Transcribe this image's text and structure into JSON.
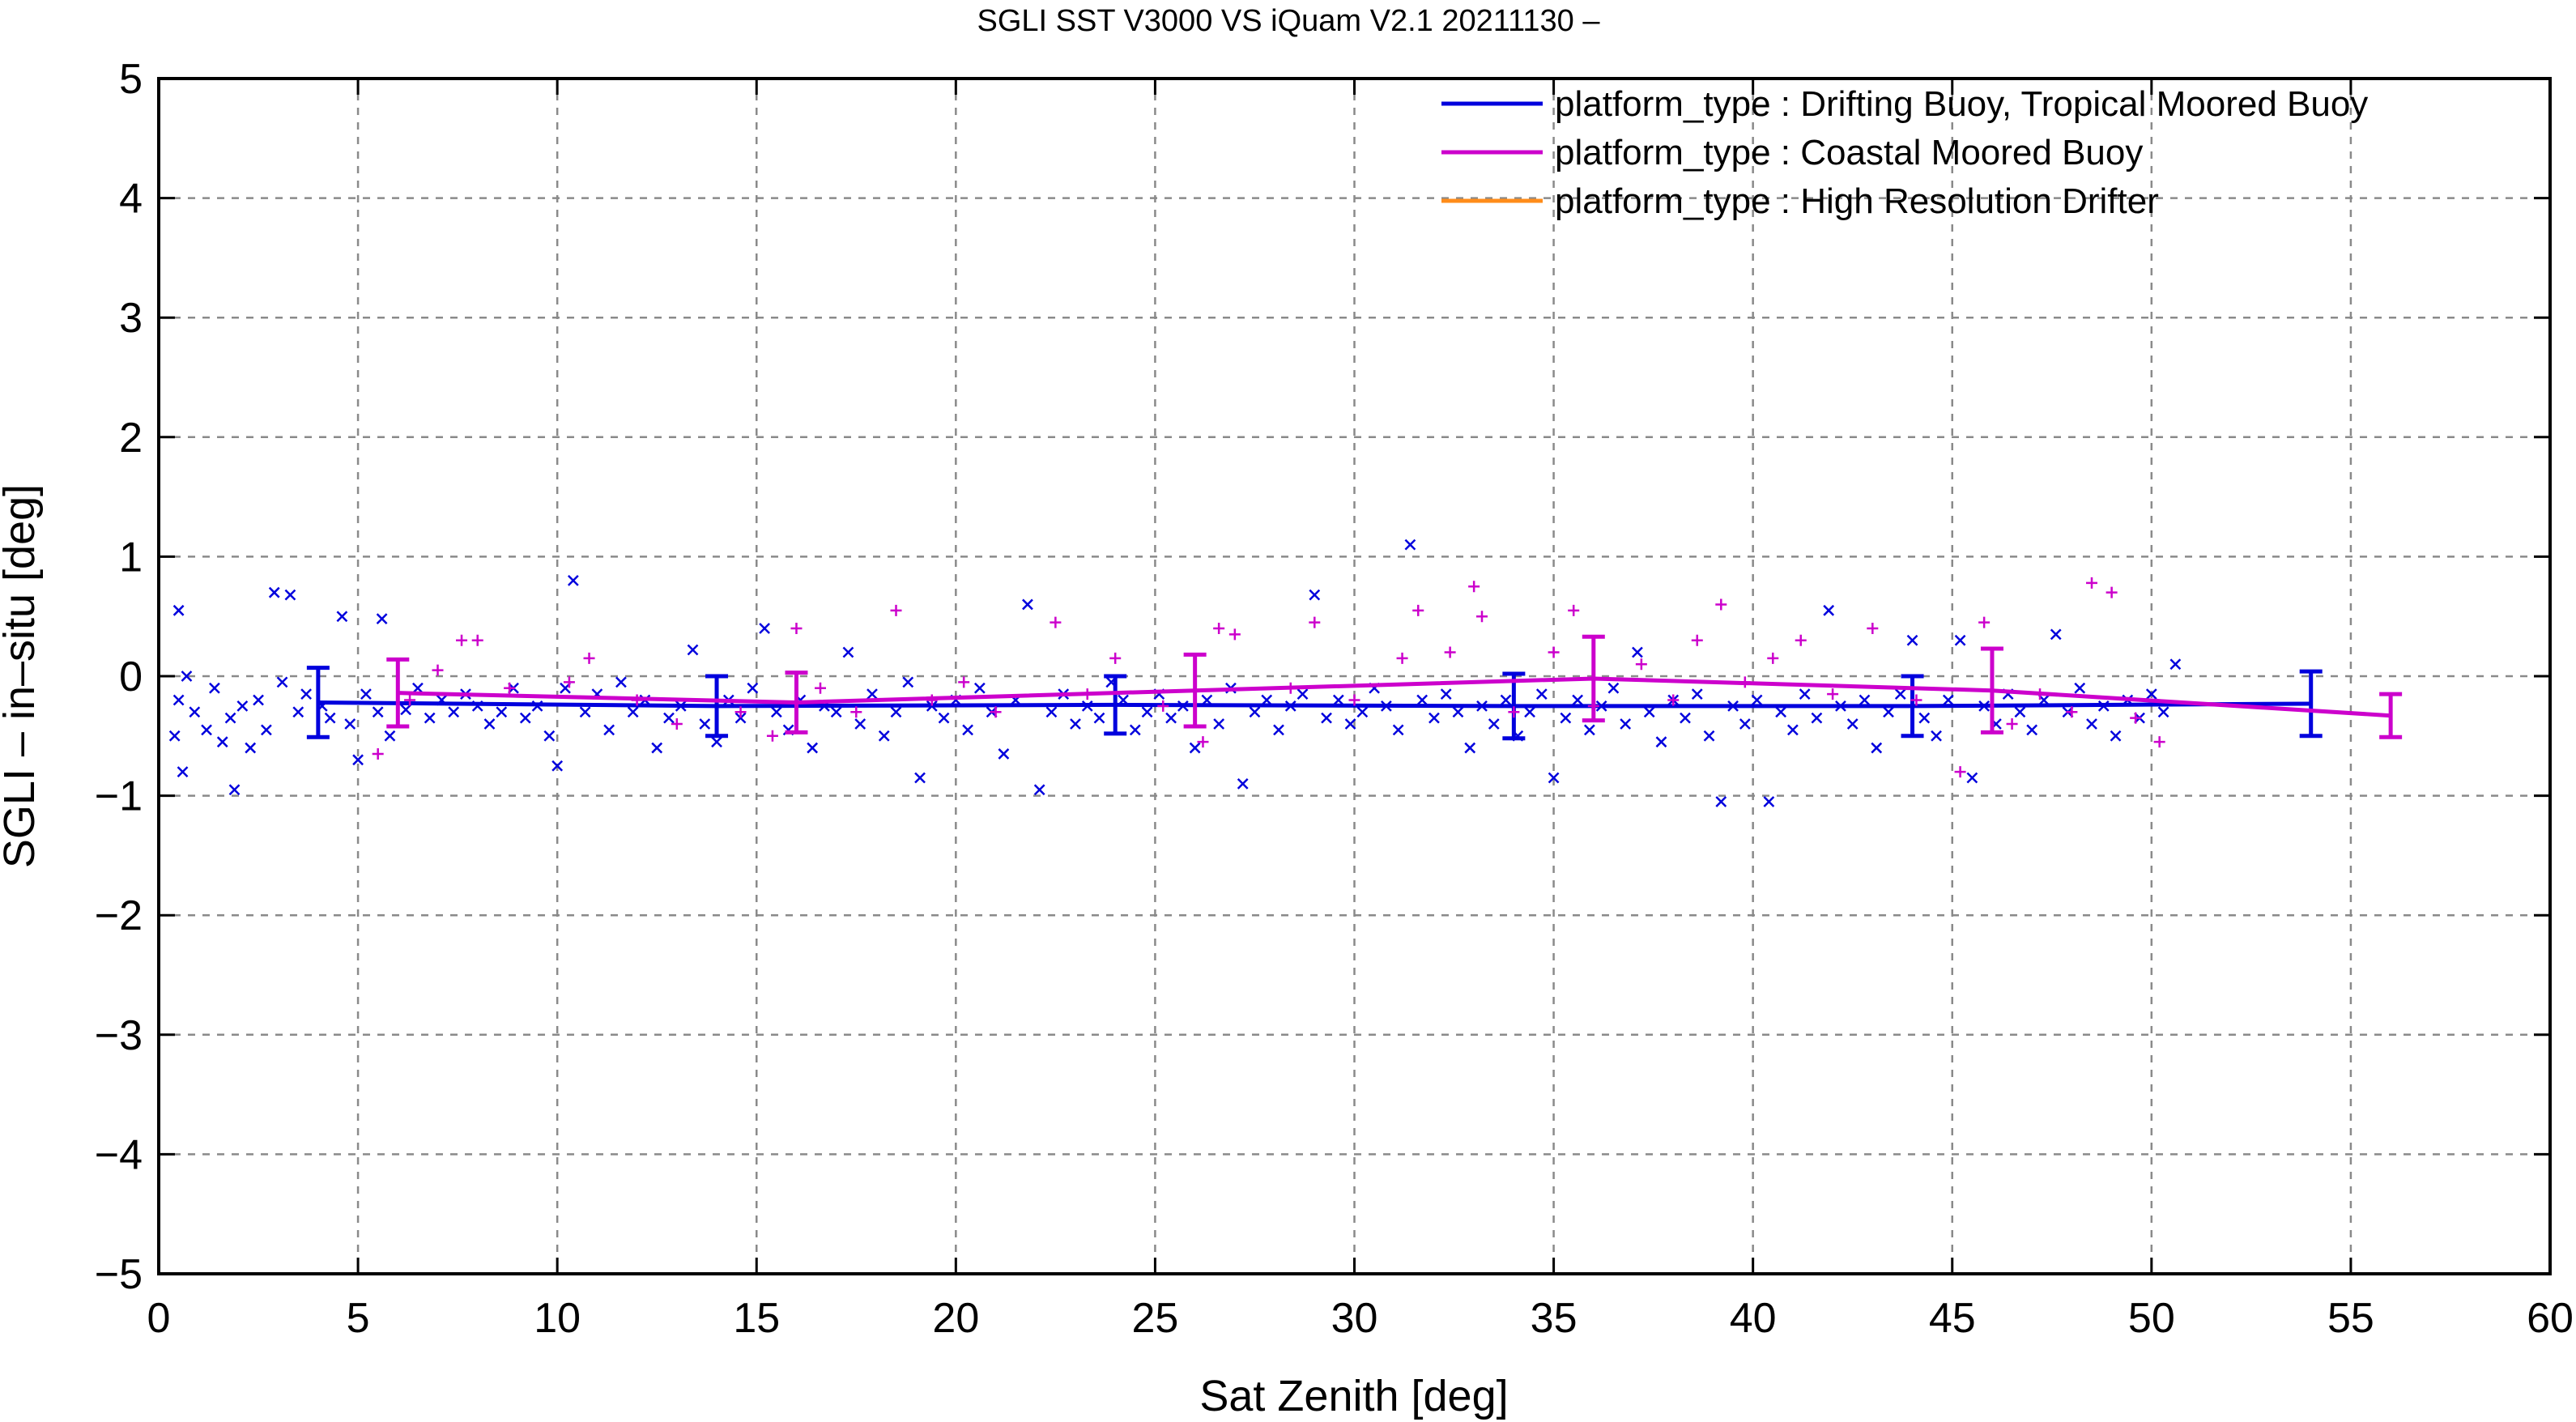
{
  "chart_data": {
    "type": "scatter",
    "title": "SGLI SST V3000 VS iQuam V2.1 20211130 –",
    "xlabel": "Sat Zenith [deg]",
    "ylabel": "SGLI – in–situ [deg]",
    "xlim": [
      0,
      60
    ],
    "ylim": [
      -5,
      5
    ],
    "xticks": [
      0,
      5,
      10,
      15,
      20,
      25,
      30,
      35,
      40,
      45,
      50,
      55,
      60
    ],
    "xtick_labels": [
      "0",
      "5",
      "10",
      "15",
      "20",
      "25",
      "30",
      "35",
      "40",
      "45",
      "50",
      "55",
      "60"
    ],
    "yticks": [
      -5,
      -4,
      -3,
      -2,
      -1,
      0,
      1,
      2,
      3,
      4,
      5
    ],
    "ytick_labels": [
      "−5",
      "−4",
      "−3",
      "−2",
      "−1",
      "0",
      "1",
      "2",
      "3",
      "4",
      "5"
    ],
    "grid": true,
    "legend_position": "top-right",
    "series": [
      {
        "name": "platform_type : Drifting Buoy, Tropical Moored Buoy",
        "color": "#0000dd",
        "marker": "x",
        "mean_line": {
          "x": [
            4,
            14,
            24,
            34,
            44,
            54
          ],
          "y": [
            -0.22,
            -0.25,
            -0.24,
            -0.25,
            -0.25,
            -0.23
          ],
          "err": [
            0.29,
            0.25,
            0.24,
            0.27,
            0.25,
            0.27
          ]
        },
        "points": [
          [
            0.4,
            -0.5
          ],
          [
            0.5,
            0.55
          ],
          [
            0.5,
            -0.2
          ],
          [
            0.6,
            -0.8
          ],
          [
            0.7,
            0.0
          ],
          [
            0.9,
            -0.3
          ],
          [
            1.2,
            -0.45
          ],
          [
            1.4,
            -0.1
          ],
          [
            1.6,
            -0.55
          ],
          [
            1.8,
            -0.35
          ],
          [
            1.9,
            -0.95
          ],
          [
            2.1,
            -0.25
          ],
          [
            2.3,
            -0.6
          ],
          [
            2.5,
            -0.2
          ],
          [
            2.7,
            -0.45
          ],
          [
            2.9,
            0.7
          ],
          [
            3.1,
            -0.05
          ],
          [
            3.3,
            0.68
          ],
          [
            3.5,
            -0.3
          ],
          [
            3.7,
            -0.15
          ],
          [
            4.1,
            -0.25
          ],
          [
            4.3,
            -0.35
          ],
          [
            4.6,
            0.5
          ],
          [
            4.8,
            -0.4
          ],
          [
            5.0,
            -0.7
          ],
          [
            5.2,
            -0.15
          ],
          [
            5.5,
            -0.3
          ],
          [
            5.6,
            0.48
          ],
          [
            5.8,
            -0.5
          ],
          [
            6.2,
            -0.28
          ],
          [
            6.5,
            -0.1
          ],
          [
            6.8,
            -0.35
          ],
          [
            7.1,
            -0.2
          ],
          [
            7.4,
            -0.3
          ],
          [
            7.7,
            -0.15
          ],
          [
            8.0,
            -0.25
          ],
          [
            8.3,
            -0.4
          ],
          [
            8.6,
            -0.3
          ],
          [
            8.9,
            -0.1
          ],
          [
            9.2,
            -0.35
          ],
          [
            9.5,
            -0.25
          ],
          [
            9.8,
            -0.5
          ],
          [
            10.0,
            -0.75
          ],
          [
            10.2,
            -0.1
          ],
          [
            10.4,
            0.8
          ],
          [
            10.7,
            -0.3
          ],
          [
            11.0,
            -0.15
          ],
          [
            11.3,
            -0.45
          ],
          [
            11.6,
            -0.05
          ],
          [
            11.9,
            -0.3
          ],
          [
            12.2,
            -0.2
          ],
          [
            12.5,
            -0.6
          ],
          [
            12.8,
            -0.35
          ],
          [
            13.1,
            -0.25
          ],
          [
            13.4,
            0.22
          ],
          [
            13.7,
            -0.4
          ],
          [
            14.0,
            -0.55
          ],
          [
            14.3,
            -0.2
          ],
          [
            14.6,
            -0.35
          ],
          [
            14.9,
            -0.1
          ],
          [
            15.2,
            0.4
          ],
          [
            15.5,
            -0.3
          ],
          [
            15.8,
            -0.45
          ],
          [
            16.1,
            -0.2
          ],
          [
            16.4,
            -0.6
          ],
          [
            16.7,
            -0.25
          ],
          [
            17.0,
            -0.3
          ],
          [
            17.3,
            0.2
          ],
          [
            17.6,
            -0.4
          ],
          [
            17.9,
            -0.15
          ],
          [
            18.2,
            -0.5
          ],
          [
            18.5,
            -0.3
          ],
          [
            18.8,
            -0.05
          ],
          [
            19.1,
            -0.85
          ],
          [
            19.4,
            -0.25
          ],
          [
            19.7,
            -0.35
          ],
          [
            20.0,
            -0.2
          ],
          [
            20.3,
            -0.45
          ],
          [
            20.6,
            -0.1
          ],
          [
            20.9,
            -0.3
          ],
          [
            21.2,
            -0.65
          ],
          [
            21.5,
            -0.2
          ],
          [
            21.8,
            0.6
          ],
          [
            22.1,
            -0.95
          ],
          [
            22.4,
            -0.3
          ],
          [
            22.7,
            -0.15
          ],
          [
            23.0,
            -0.4
          ],
          [
            23.3,
            -0.25
          ],
          [
            23.6,
            -0.35
          ],
          [
            23.9,
            -0.05
          ],
          [
            24.2,
            -0.2
          ],
          [
            24.5,
            -0.45
          ],
          [
            24.8,
            -0.3
          ],
          [
            25.1,
            -0.15
          ],
          [
            25.4,
            -0.35
          ],
          [
            25.7,
            -0.25
          ],
          [
            26.0,
            -0.6
          ],
          [
            26.3,
            -0.2
          ],
          [
            26.6,
            -0.4
          ],
          [
            26.9,
            -0.1
          ],
          [
            27.2,
            -0.9
          ],
          [
            27.5,
            -0.3
          ],
          [
            27.8,
            -0.2
          ],
          [
            28.1,
            -0.45
          ],
          [
            28.4,
            -0.25
          ],
          [
            28.7,
            -0.15
          ],
          [
            29.0,
            0.68
          ],
          [
            29.3,
            -0.35
          ],
          [
            29.6,
            -0.2
          ],
          [
            29.9,
            -0.4
          ],
          [
            30.2,
            -0.3
          ],
          [
            30.5,
            -0.1
          ],
          [
            30.8,
            -0.25
          ],
          [
            31.1,
            -0.45
          ],
          [
            31.4,
            1.1
          ],
          [
            31.7,
            -0.2
          ],
          [
            32.0,
            -0.35
          ],
          [
            32.3,
            -0.15
          ],
          [
            32.6,
            -0.3
          ],
          [
            32.9,
            -0.6
          ],
          [
            33.2,
            -0.25
          ],
          [
            33.5,
            -0.4
          ],
          [
            33.8,
            -0.2
          ],
          [
            34.1,
            -0.5
          ],
          [
            34.4,
            -0.3
          ],
          [
            34.7,
            -0.15
          ],
          [
            35.0,
            -0.85
          ],
          [
            35.3,
            -0.35
          ],
          [
            35.6,
            -0.2
          ],
          [
            35.9,
            -0.45
          ],
          [
            36.2,
            -0.25
          ],
          [
            36.5,
            -0.1
          ],
          [
            36.8,
            -0.4
          ],
          [
            37.1,
            0.2
          ],
          [
            37.4,
            -0.3
          ],
          [
            37.7,
            -0.55
          ],
          [
            38.0,
            -0.2
          ],
          [
            38.3,
            -0.35
          ],
          [
            38.6,
            -0.15
          ],
          [
            38.9,
            -0.5
          ],
          [
            39.2,
            -1.05
          ],
          [
            39.5,
            -0.25
          ],
          [
            39.8,
            -0.4
          ],
          [
            40.1,
            -0.2
          ],
          [
            40.4,
            -1.05
          ],
          [
            40.7,
            -0.3
          ],
          [
            41.0,
            -0.45
          ],
          [
            41.3,
            -0.15
          ],
          [
            41.6,
            -0.35
          ],
          [
            41.9,
            0.55
          ],
          [
            42.2,
            -0.25
          ],
          [
            42.5,
            -0.4
          ],
          [
            42.8,
            -0.2
          ],
          [
            43.1,
            -0.6
          ],
          [
            43.4,
            -0.3
          ],
          [
            43.7,
            -0.15
          ],
          [
            44.0,
            0.3
          ],
          [
            44.3,
            -0.35
          ],
          [
            44.6,
            -0.5
          ],
          [
            44.9,
            -0.2
          ],
          [
            45.2,
            0.3
          ],
          [
            45.5,
            -0.85
          ],
          [
            45.8,
            -0.25
          ],
          [
            46.1,
            -0.4
          ],
          [
            46.4,
            -0.15
          ],
          [
            46.7,
            -0.3
          ],
          [
            47.0,
            -0.45
          ],
          [
            47.3,
            -0.2
          ],
          [
            47.6,
            0.35
          ],
          [
            47.9,
            -0.3
          ],
          [
            48.2,
            -0.1
          ],
          [
            48.5,
            -0.4
          ],
          [
            48.8,
            -0.25
          ],
          [
            49.1,
            -0.5
          ],
          [
            49.4,
            -0.2
          ],
          [
            49.7,
            -0.35
          ],
          [
            50.0,
            -0.15
          ],
          [
            50.3,
            -0.3
          ],
          [
            50.6,
            0.1
          ]
        ]
      },
      {
        "name": "platform_type : Coastal Moored Buoy",
        "color": "#cc00cc",
        "marker": "+",
        "mean_line": {
          "x": [
            6,
            16,
            26,
            36,
            46,
            56
          ],
          "y": [
            -0.14,
            -0.22,
            -0.12,
            -0.02,
            -0.12,
            -0.33
          ],
          "err": [
            0.28,
            0.25,
            0.3,
            0.35,
            0.35,
            0.18
          ]
        },
        "points": [
          [
            5.5,
            -0.65
          ],
          [
            6.3,
            -0.2
          ],
          [
            7.0,
            0.05
          ],
          [
            7.6,
            0.3
          ],
          [
            8.0,
            0.3
          ],
          [
            8.8,
            -0.1
          ],
          [
            10.3,
            -0.05
          ],
          [
            10.8,
            0.15
          ],
          [
            12.0,
            -0.2
          ],
          [
            13.0,
            -0.4
          ],
          [
            14.6,
            -0.3
          ],
          [
            15.4,
            -0.5
          ],
          [
            16.0,
            0.4
          ],
          [
            16.6,
            -0.1
          ],
          [
            17.5,
            -0.3
          ],
          [
            18.5,
            0.55
          ],
          [
            19.4,
            -0.2
          ],
          [
            20.2,
            -0.05
          ],
          [
            21.0,
            -0.3
          ],
          [
            22.5,
            0.45
          ],
          [
            23.3,
            -0.15
          ],
          [
            24.0,
            0.15
          ],
          [
            25.2,
            -0.25
          ],
          [
            26.2,
            -0.55
          ],
          [
            26.6,
            0.4
          ],
          [
            27.0,
            0.35
          ],
          [
            28.4,
            -0.1
          ],
          [
            29.0,
            0.45
          ],
          [
            30.0,
            -0.2
          ],
          [
            31.2,
            0.15
          ],
          [
            31.6,
            0.55
          ],
          [
            32.4,
            0.2
          ],
          [
            33.0,
            0.75
          ],
          [
            33.2,
            0.5
          ],
          [
            34.0,
            -0.3
          ],
          [
            35.0,
            0.2
          ],
          [
            35.5,
            0.55
          ],
          [
            36.0,
            -0.25
          ],
          [
            37.2,
            0.1
          ],
          [
            38.0,
            -0.2
          ],
          [
            38.6,
            0.3
          ],
          [
            39.2,
            0.6
          ],
          [
            39.8,
            -0.05
          ],
          [
            40.5,
            0.15
          ],
          [
            41.2,
            0.3
          ],
          [
            42.0,
            -0.15
          ],
          [
            43.0,
            0.4
          ],
          [
            44.1,
            -0.2
          ],
          [
            45.2,
            -0.8
          ],
          [
            45.8,
            0.45
          ],
          [
            46.5,
            -0.4
          ],
          [
            47.2,
            -0.15
          ],
          [
            48.0,
            -0.3
          ],
          [
            48.5,
            0.78
          ],
          [
            49.0,
            0.7
          ],
          [
            49.6,
            -0.35
          ],
          [
            50.2,
            -0.55
          ]
        ]
      },
      {
        "name": "platform_type : High Resolution Drifter",
        "color": "#ff8c1a",
        "marker": "*",
        "mean_line": {
          "x": [],
          "y": [],
          "err": []
        },
        "points": []
      }
    ]
  }
}
